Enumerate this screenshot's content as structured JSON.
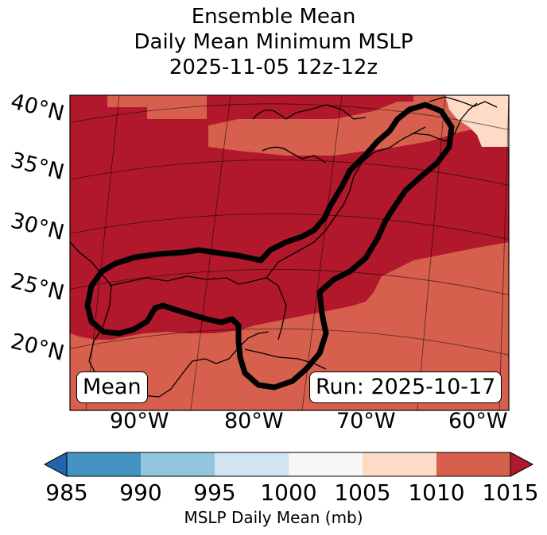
{
  "title": {
    "line1": "Ensemble Mean",
    "line2": "Daily Mean Minimum MSLP",
    "line3": "2025-11-05 12z-12z"
  },
  "map": {
    "lat_labels": [
      "40°N",
      "35°N",
      "30°N",
      "25°N",
      "20°N"
    ],
    "lon_labels": [
      "90°W",
      "80°W",
      "70°W",
      "60°W"
    ],
    "mean_label": "Mean",
    "run_label": "Run: 2025-10-17",
    "colors": {
      "c1010_1015": "#d6604d",
      "c1015_plus": "#b2182b",
      "c1005_1010": "#fddbc7",
      "land_line": "#000000",
      "contour": "#000000"
    }
  },
  "colorbar": {
    "ticks": [
      "985",
      "990",
      "995",
      "1000",
      "1005",
      "1010",
      "1015"
    ],
    "colors": [
      "#2166ac",
      "#4393c3",
      "#92c5de",
      "#d1e5f0",
      "#f7f7f7",
      "#fddbc7",
      "#d6604d",
      "#b2182b"
    ],
    "label": "MSLP Daily Mean (mb)"
  }
}
